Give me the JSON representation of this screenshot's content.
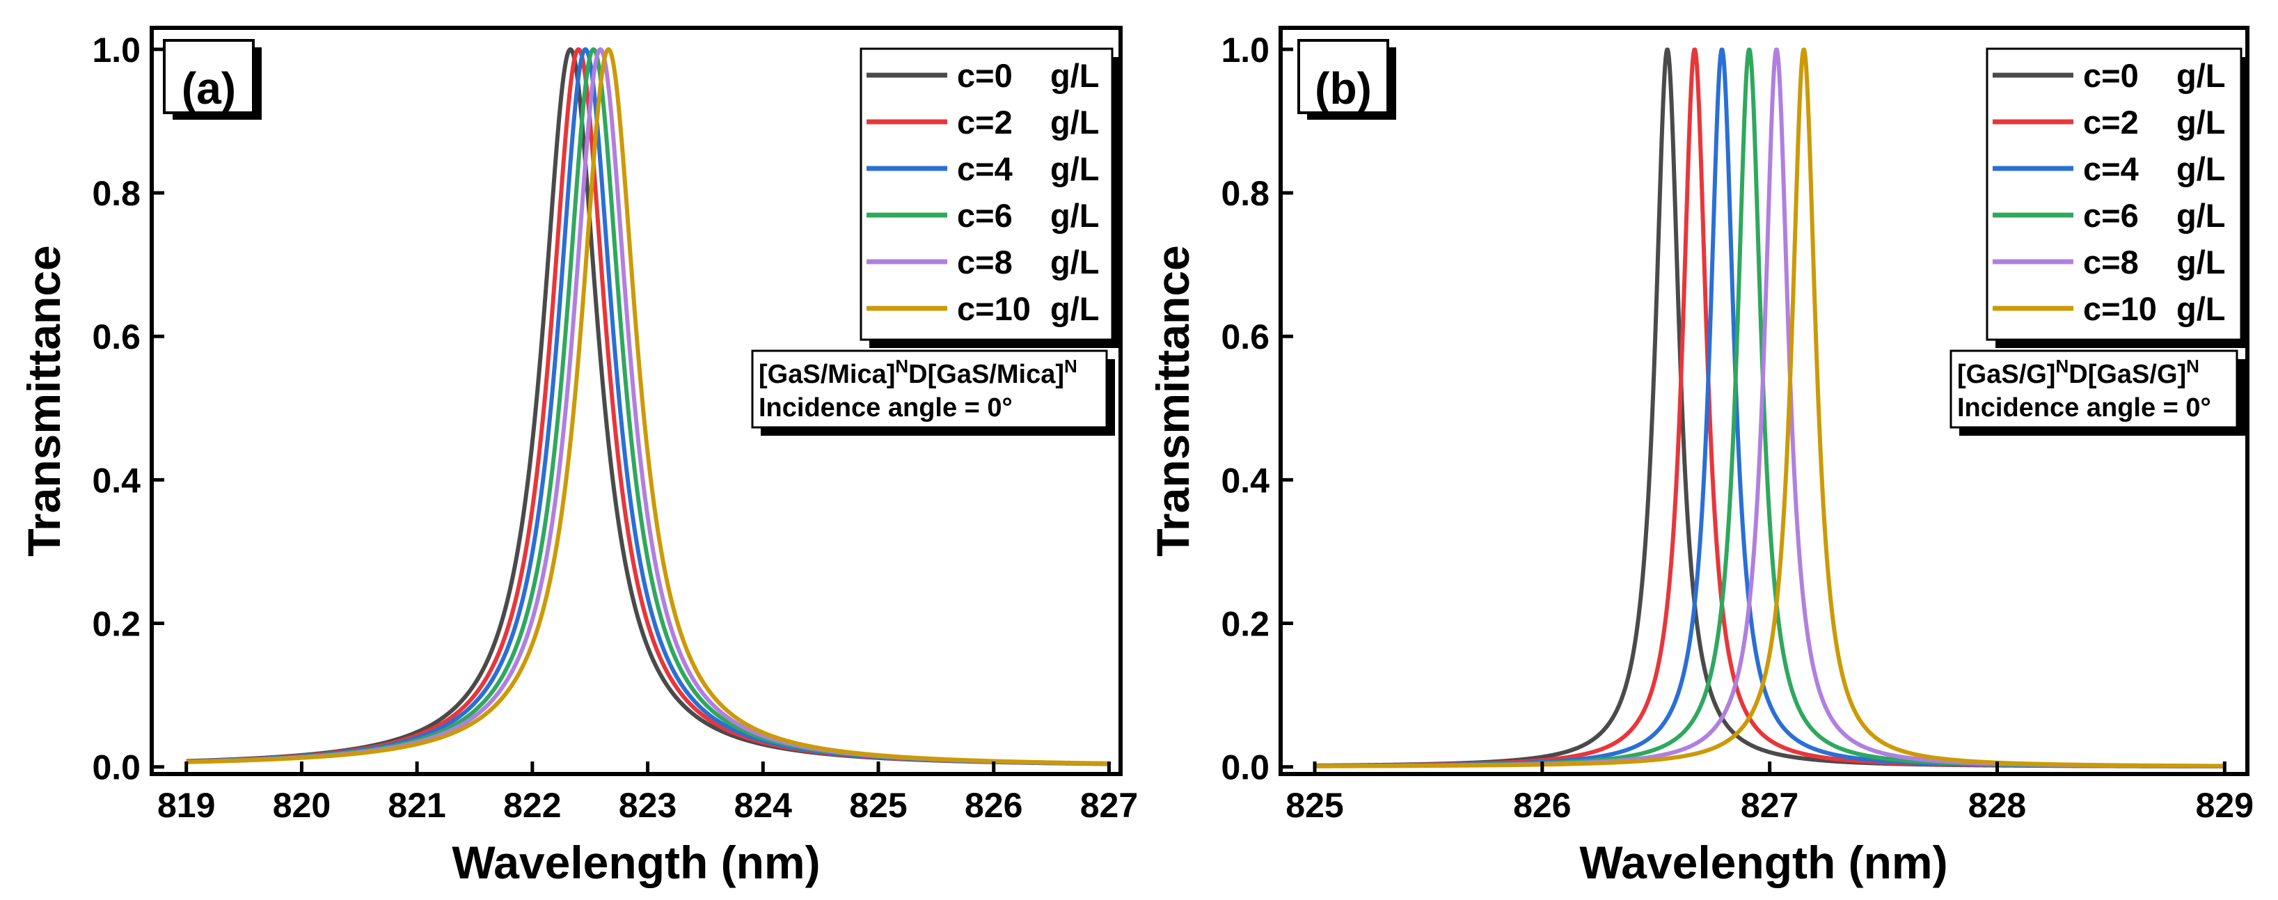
{
  "figure": {
    "legend_unit": "g/L",
    "chart_data": [
      {
        "type": "line",
        "panel_label": "(a)",
        "xlabel": "Wavelength (nm)",
        "ylabel": "Transmittance",
        "xlim": [
          818.7,
          827.1
        ],
        "ylim": [
          -0.01,
          1.03
        ],
        "xticks": [
          819,
          820,
          821,
          822,
          823,
          824,
          825,
          826,
          827
        ],
        "xtick_labels": [
          "819",
          "820",
          "821",
          "822",
          "823",
          "824",
          "825",
          "826",
          "827"
        ],
        "yticks": [
          0.0,
          0.2,
          0.4,
          0.6,
          0.8,
          1.0
        ],
        "ytick_labels": [
          "0.0",
          "0.2",
          "0.4",
          "0.6",
          "0.8",
          "1.0"
        ],
        "x_range": [
          819,
          827
        ],
        "lineshape": "lorentzian",
        "half_width_nm": 0.3,
        "annotation": {
          "line1_a": "[GaS/Mica]",
          "line1_sup1": "N",
          "line1_b": "D[GaS/Mica]",
          "line1_sup2": "N",
          "line2": "Incidence angle = 0°"
        },
        "series": [
          {
            "name": "c=0",
            "peak_wavelength_nm": 822.33,
            "peak_transmittance": 1.0,
            "color": "#4a4a4a"
          },
          {
            "name": "c=2",
            "peak_wavelength_nm": 822.4,
            "peak_transmittance": 1.0,
            "color": "#e8363a"
          },
          {
            "name": "c=4",
            "peak_wavelength_nm": 822.46,
            "peak_transmittance": 1.0,
            "color": "#2a6fd6"
          },
          {
            "name": "c=6",
            "peak_wavelength_nm": 822.53,
            "peak_transmittance": 1.0,
            "color": "#2fa85e"
          },
          {
            "name": "c=8",
            "peak_wavelength_nm": 822.59,
            "peak_transmittance": 1.0,
            "color": "#b07fe0"
          },
          {
            "name": "c=10",
            "peak_wavelength_nm": 822.66,
            "peak_transmittance": 1.0,
            "color": "#cc9a06"
          }
        ]
      },
      {
        "type": "line",
        "panel_label": "(b)",
        "xlabel": "Wavelength (nm)",
        "ylabel": "Transmittance",
        "xlim": [
          824.85,
          829.1
        ],
        "ylim": [
          -0.01,
          1.03
        ],
        "xticks": [
          825,
          826,
          827,
          828,
          829
        ],
        "xtick_labels": [
          "825",
          "826",
          "827",
          "828",
          "829"
        ],
        "yticks": [
          0.0,
          0.2,
          0.4,
          0.6,
          0.8,
          1.0
        ],
        "ytick_labels": [
          "0.0",
          "0.2",
          "0.4",
          "0.6",
          "0.8",
          "1.0"
        ],
        "x_range": [
          825,
          829
        ],
        "lineshape": "lorentzian",
        "half_width_nm": 0.065,
        "annotation": {
          "line1_a": "[GaS/G]",
          "line1_sup1": "N",
          "line1_b": "D[GaS/G]",
          "line1_sup2": "N",
          "line2": "Incidence angle = 0°"
        },
        "series": [
          {
            "name": "c=0",
            "peak_wavelength_nm": 826.55,
            "peak_transmittance": 1.0,
            "color": "#4a4a4a"
          },
          {
            "name": "c=2",
            "peak_wavelength_nm": 826.67,
            "peak_transmittance": 1.0,
            "color": "#e8363a"
          },
          {
            "name": "c=4",
            "peak_wavelength_nm": 826.79,
            "peak_transmittance": 1.0,
            "color": "#2a6fd6"
          },
          {
            "name": "c=6",
            "peak_wavelength_nm": 826.91,
            "peak_transmittance": 1.0,
            "color": "#2fa85e"
          },
          {
            "name": "c=8",
            "peak_wavelength_nm": 827.03,
            "peak_transmittance": 1.0,
            "color": "#b07fe0"
          },
          {
            "name": "c=10",
            "peak_wavelength_nm": 827.15,
            "peak_transmittance": 1.0,
            "color": "#cc9a06"
          }
        ]
      }
    ]
  }
}
